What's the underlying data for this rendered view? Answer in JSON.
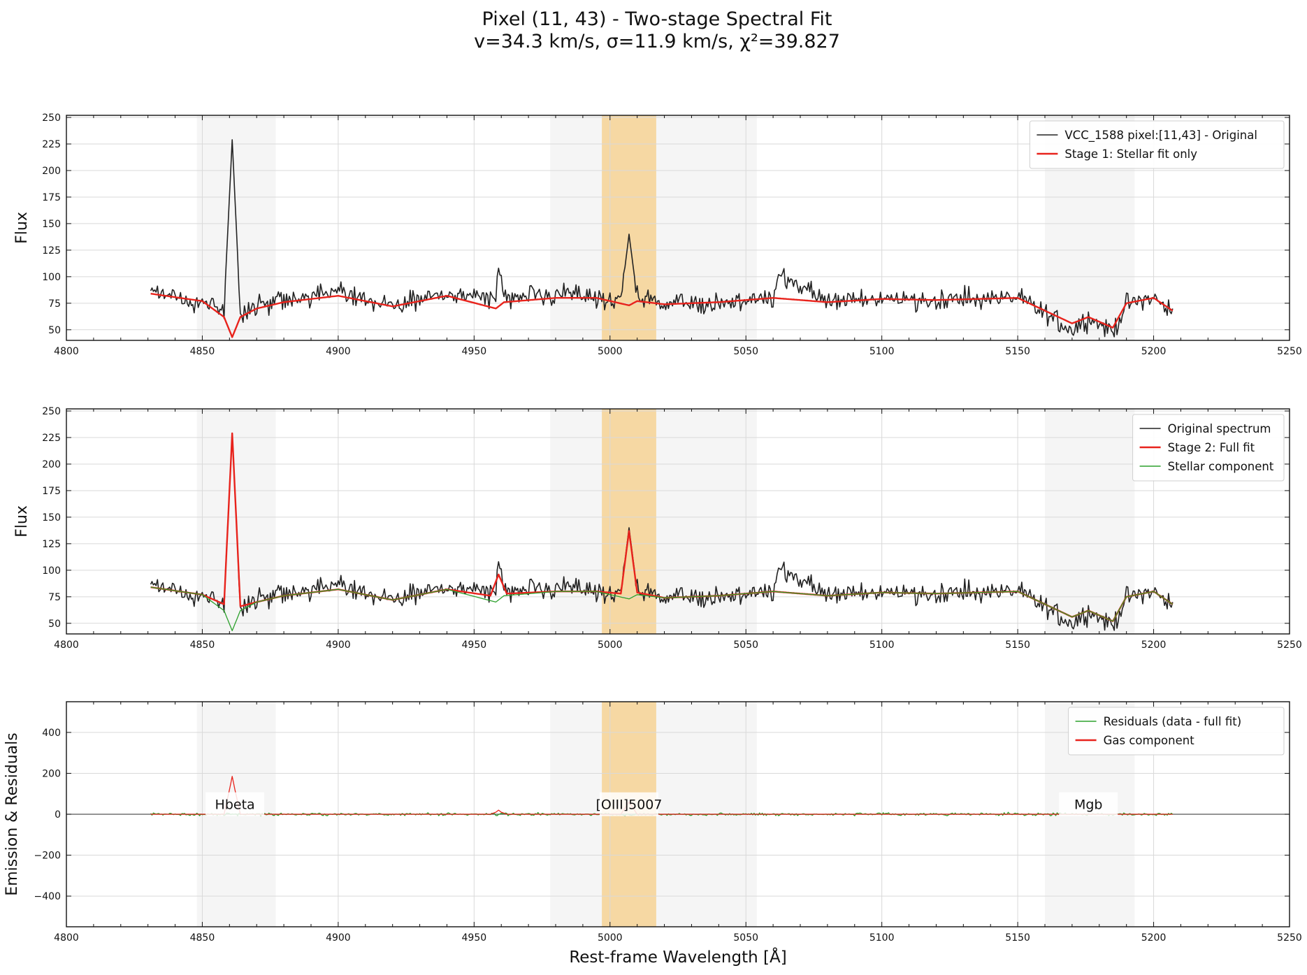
{
  "title": {
    "line1": "Pixel (11, 43) - Two-stage Spectral Fit",
    "line2": "v=34.3 km/s, σ=11.9 km/s, χ²=39.827"
  },
  "chart_data": [
    {
      "type": "line",
      "ylabel": "Flux",
      "xlim": [
        4800,
        5250
      ],
      "ylim": [
        40,
        252
      ],
      "xticks": [
        4800,
        4850,
        4900,
        4950,
        5000,
        5050,
        5100,
        5150,
        5200,
        5250
      ],
      "yticks": [
        50,
        75,
        100,
        125,
        150,
        175,
        200,
        225,
        250
      ],
      "legend": {
        "placement": "top-right",
        "entries": [
          {
            "label": "VCC_1588 pixel:[11,43] - Original",
            "color": "#222222"
          },
          {
            "label": "Stage 1: Stellar fit only",
            "color": "#e8231c"
          }
        ]
      },
      "series": [
        {
          "name": "VCC_1588 pixel:[11,43] - Original",
          "role": "data",
          "color": "#222222",
          "x": [
            4831,
            4850,
            4858,
            4861,
            4864,
            4870,
            4880,
            4900,
            4920,
            4940,
            4958,
            4959,
            4961,
            4980,
            4995,
            5004,
            5007,
            5010,
            5020,
            5040,
            5060,
            5062,
            5080,
            5100,
            5120,
            5150,
            5170,
            5176,
            5185,
            5190,
            5200,
            5207
          ],
          "y": [
            85,
            75,
            70,
            229,
            65,
            72,
            77,
            85,
            72,
            84,
            80,
            108,
            82,
            82,
            80,
            78,
            140,
            80,
            74,
            75,
            80,
            102,
            76,
            80,
            78,
            80,
            50,
            62,
            48,
            74,
            80,
            65
          ]
        },
        {
          "name": "Stage 1: Stellar fit only",
          "role": "fit",
          "color": "#e8231c",
          "x": [
            4831,
            4850,
            4858,
            4861,
            4864,
            4870,
            4880,
            4900,
            4920,
            4940,
            4958,
            4961,
            4980,
            4995,
            5007,
            5010,
            5020,
            5040,
            5060,
            5080,
            5100,
            5120,
            5150,
            5170,
            5176,
            5185,
            5190,
            5200,
            5207
          ],
          "y": [
            84,
            77,
            62,
            43,
            62,
            70,
            76,
            82,
            72,
            82,
            70,
            76,
            80,
            80,
            73,
            77,
            74,
            76,
            80,
            76,
            79,
            78,
            80,
            56,
            62,
            52,
            75,
            80,
            68
          ]
        }
      ]
    },
    {
      "type": "line",
      "ylabel": "Flux",
      "xlim": [
        4800,
        5250
      ],
      "ylim": [
        40,
        252
      ],
      "xticks": [
        4800,
        4850,
        4900,
        4950,
        5000,
        5050,
        5100,
        5150,
        5200,
        5250
      ],
      "yticks": [
        50,
        75,
        100,
        125,
        150,
        175,
        200,
        225,
        250
      ],
      "legend": {
        "placement": "top-right",
        "entries": [
          {
            "label": "Original spectrum",
            "color": "#222222"
          },
          {
            "label": "Stage 2: Full fit",
            "color": "#e8231c"
          },
          {
            "label": "Stellar component",
            "color": "#2ca02c"
          }
        ]
      },
      "series": [
        {
          "name": "Original spectrum",
          "role": "data",
          "color": "#222222",
          "x": [
            4831,
            4850,
            4858,
            4861,
            4864,
            4870,
            4880,
            4900,
            4920,
            4940,
            4958,
            4959,
            4961,
            4980,
            4995,
            5004,
            5007,
            5010,
            5020,
            5040,
            5060,
            5062,
            5080,
            5100,
            5120,
            5150,
            5170,
            5176,
            5185,
            5190,
            5200,
            5207
          ],
          "y": [
            85,
            75,
            70,
            229,
            65,
            72,
            77,
            85,
            72,
            84,
            80,
            108,
            82,
            82,
            80,
            78,
            140,
            80,
            74,
            75,
            80,
            102,
            76,
            80,
            78,
            80,
            50,
            62,
            48,
            74,
            80,
            65
          ]
        },
        {
          "name": "Stage 2: Full fit",
          "role": "fit",
          "color": "#e8231c",
          "x": [
            4831,
            4850,
            4858,
            4861,
            4864,
            4870,
            4880,
            4900,
            4920,
            4940,
            4956,
            4959,
            4962,
            4980,
            4995,
            5004,
            5007,
            5010,
            5020,
            5040,
            5060,
            5080,
            5100,
            5120,
            5150,
            5170,
            5176,
            5185,
            5190,
            5200,
            5207
          ],
          "y": [
            84,
            77,
            68,
            229,
            66,
            70,
            76,
            82,
            72,
            82,
            76,
            96,
            78,
            80,
            80,
            78,
            137,
            79,
            74,
            76,
            80,
            76,
            79,
            78,
            80,
            56,
            62,
            52,
            75,
            80,
            68
          ]
        },
        {
          "name": "Stellar component",
          "role": "stellar",
          "color": "#2ca02c",
          "x": [
            4831,
            4850,
            4858,
            4861,
            4864,
            4870,
            4880,
            4900,
            4920,
            4940,
            4958,
            4961,
            4980,
            4995,
            5007,
            5010,
            5020,
            5040,
            5060,
            5080,
            5100,
            5120,
            5150,
            5170,
            5176,
            5185,
            5190,
            5200,
            5207
          ],
          "y": [
            84,
            77,
            62,
            43,
            62,
            70,
            76,
            82,
            72,
            82,
            70,
            76,
            80,
            80,
            73,
            77,
            74,
            76,
            80,
            76,
            79,
            78,
            80,
            56,
            62,
            52,
            75,
            80,
            68
          ]
        }
      ]
    },
    {
      "type": "line",
      "xlabel": "Rest-frame Wavelength [Å]",
      "ylabel": "Emission & Residuals",
      "xlim": [
        4800,
        5250
      ],
      "ylim": [
        -550,
        550
      ],
      "xticks": [
        4800,
        4850,
        4900,
        4950,
        5000,
        5050,
        5100,
        5150,
        5200,
        5250
      ],
      "yticks": [
        -400,
        -200,
        0,
        200,
        400
      ],
      "legend": {
        "placement": "top-right",
        "entries": [
          {
            "label": "Residuals (data - full fit)",
            "color": "#2ca02c"
          },
          {
            "label": "Gas component",
            "color": "#e8231c"
          }
        ]
      },
      "annotations": [
        {
          "text": "Hbeta",
          "x": 4862,
          "y": 25
        },
        {
          "text": "[OIII]5007",
          "x": 5007,
          "y": 25
        },
        {
          "text": "Mgb",
          "x": 5176,
          "y": 25
        }
      ],
      "series": [
        {
          "name": "Residuals (data - full fit)",
          "role": "residual",
          "color": "#2ca02c",
          "x": [
            4831,
            4850,
            4880,
            4920,
            4960,
            5000,
            5040,
            5080,
            5120,
            5160,
            5207
          ],
          "y": [
            0,
            0,
            0,
            0,
            0,
            0,
            0,
            0,
            0,
            0,
            0
          ]
        },
        {
          "name": "Gas component",
          "role": "gas",
          "color": "#e8231c",
          "x": [
            4831,
            4858,
            4860,
            4861,
            4862,
            4864,
            4956,
            4958,
            4959,
            4960,
            4962,
            5004,
            5006,
            5007,
            5008,
            5010,
            5207
          ],
          "y": [
            0,
            0,
            120,
            185,
            120,
            0,
            0,
            10,
            20,
            10,
            0,
            0,
            40,
            60,
            40,
            0,
            0
          ]
        }
      ]
    }
  ],
  "shaded_regions": [
    {
      "x0": 4848,
      "x1": 4877,
      "color": "#ececec"
    },
    {
      "x0": 4978,
      "x1": 5054,
      "color": "#ececec"
    },
    {
      "x0": 4997,
      "x1": 5017,
      "color": "#f5cd87"
    },
    {
      "x0": 5160,
      "x1": 5193,
      "color": "#ececec"
    }
  ]
}
